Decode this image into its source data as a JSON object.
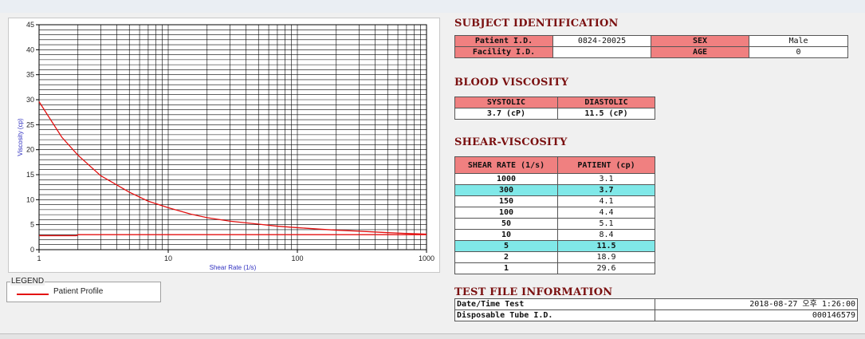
{
  "chart_data": {
    "type": "line",
    "xscale": "log",
    "xlim": [
      1,
      1000
    ],
    "ylim": [
      0,
      45
    ],
    "xlabel": "Shear Rate (1/s)",
    "ylabel": "Viscosity (cp)",
    "x_ticks": [
      "1",
      "10",
      "100",
      "1000"
    ],
    "y_ticks": [
      "0",
      "5",
      "10",
      "15",
      "20",
      "25",
      "30",
      "35",
      "40",
      "45"
    ],
    "grid": true,
    "series": [
      {
        "name": "Patient Profile",
        "color": "#e31010",
        "x": [
          1,
          1.5,
          2,
          3,
          5,
          7,
          10,
          15,
          20,
          30,
          50,
          70,
          100,
          150,
          200,
          300,
          500,
          700,
          1000
        ],
        "y": [
          29.6,
          22.5,
          18.9,
          14.8,
          11.5,
          9.7,
          8.4,
          7.1,
          6.4,
          5.7,
          5.1,
          4.7,
          4.4,
          4.1,
          3.9,
          3.7,
          3.4,
          3.25,
          3.1
        ]
      },
      {
        "color": "#e31010",
        "x": [
          1,
          1.95,
          2,
          1000
        ],
        "y": [
          2.8,
          2.8,
          3.0,
          3.0
        ]
      }
    ]
  },
  "legend": {
    "title": "LEGEND",
    "entry": "Patient Profile",
    "color": "#e31010"
  },
  "subject": {
    "title": "SUBJECT IDENTIFICATION",
    "patient_id_label": "Patient I.D.",
    "patient_id": "0824-20025",
    "sex_label": "SEX",
    "sex": "Male",
    "facility_label": "Facility I.D.",
    "facility": "",
    "age_label": "AGE",
    "age": "0"
  },
  "blood": {
    "title": "BLOOD VISCOSITY",
    "systolic_label": "SYSTOLIC",
    "diastolic_label": "DIASTOLIC",
    "systolic": "3.7 (cP)",
    "diastolic": "11.5 (cP)"
  },
  "shear": {
    "title": "SHEAR-VISCOSITY",
    "col1": "SHEAR RATE (1/s)",
    "col2": "PATIENT (cp)",
    "rows": [
      {
        "rate": "1000",
        "value": "3.1"
      },
      {
        "rate": "300",
        "value": "3.7"
      },
      {
        "rate": "150",
        "value": "4.1"
      },
      {
        "rate": "100",
        "value": "4.4"
      },
      {
        "rate": "50",
        "value": "5.1"
      },
      {
        "rate": "10",
        "value": "8.4"
      },
      {
        "rate": "5",
        "value": "11.5"
      },
      {
        "rate": "2",
        "value": "18.9"
      },
      {
        "rate": "1",
        "value": "29.6"
      }
    ]
  },
  "testfile": {
    "title": "TEST FILE INFORMATION",
    "date_label": "Date/Time Test",
    "date_value": "2018-08-27  오후 1:26:00",
    "tube_label": "Disposable Tube I.D.",
    "tube_value": "000146579"
  }
}
